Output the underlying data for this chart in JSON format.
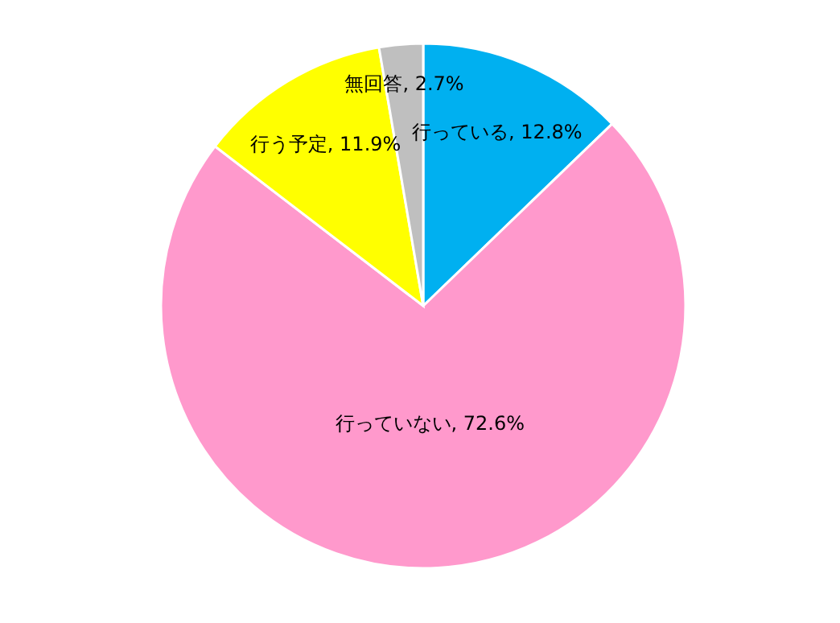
{
  "chart_data": {
    "type": "pie",
    "categories": [
      "行っている",
      "行っていない",
      "行う予定",
      "無回答"
    ],
    "values": [
      12.8,
      72.6,
      11.9,
      2.7
    ],
    "value_labels": [
      "12.8%",
      "72.6%",
      "11.9%",
      "2.7%"
    ],
    "colors": [
      "#00b0f0",
      "#ff99cc",
      "#ffff00",
      "#bfbfbf"
    ]
  }
}
